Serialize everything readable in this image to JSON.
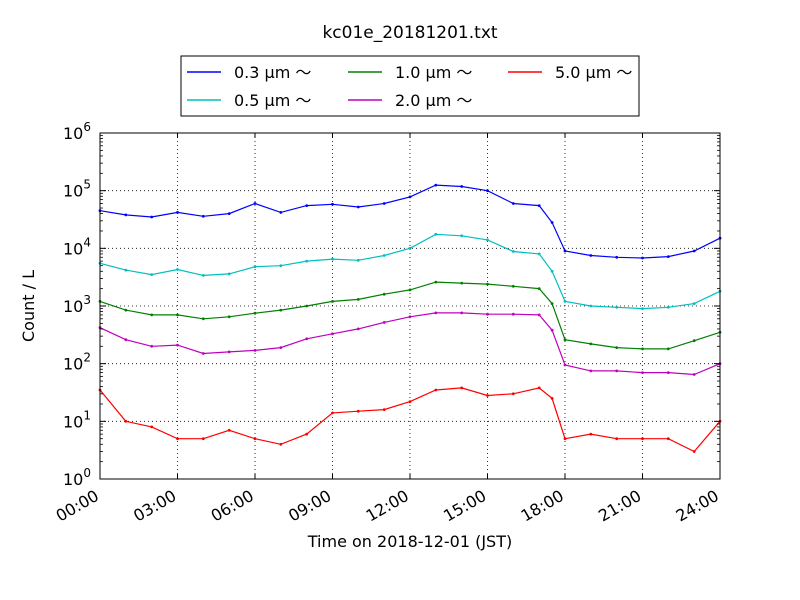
{
  "chart_data": {
    "type": "line",
    "title": "kc01e_20181201.txt",
    "xlabel": "Time on 2018-12-01 (JST)",
    "ylabel": "Count / L",
    "yscale": "log",
    "xlim": [
      "00:00",
      "24:00"
    ],
    "ylim": [
      1,
      1000000
    ],
    "grid": true,
    "legend_position": "top",
    "x_ticks": [
      "00:00",
      "03:00",
      "06:00",
      "09:00",
      "12:00",
      "15:00",
      "18:00",
      "21:00",
      "24:00"
    ],
    "y_ticks": [
      {
        "value": 1,
        "base": "10",
        "exp": "0"
      },
      {
        "value": 10,
        "base": "10",
        "exp": "1"
      },
      {
        "value": 100,
        "base": "10",
        "exp": "2"
      },
      {
        "value": 1000,
        "base": "10",
        "exp": "3"
      },
      {
        "value": 10000,
        "base": "10",
        "exp": "4"
      },
      {
        "value": 100000,
        "base": "10",
        "exp": "5"
      },
      {
        "value": 1000000,
        "base": "10",
        "exp": "6"
      }
    ],
    "x": [
      "00:00",
      "01:00",
      "02:00",
      "03:00",
      "04:00",
      "05:00",
      "06:00",
      "07:00",
      "08:00",
      "09:00",
      "10:00",
      "11:00",
      "12:00",
      "13:00",
      "14:00",
      "15:00",
      "16:00",
      "17:00",
      "17:30",
      "18:00",
      "19:00",
      "20:00",
      "21:00",
      "22:00",
      "23:00",
      "24:00"
    ],
    "series": [
      {
        "name": "0.3 μm ～",
        "color": "#0000ff",
        "values": [
          45000,
          38000,
          35000,
          42000,
          36000,
          40000,
          60000,
          42000,
          55000,
          58000,
          52000,
          60000,
          78000,
          125000,
          118000,
          100000,
          60000,
          55000,
          28000,
          9000,
          7500,
          7000,
          6800,
          7200,
          9000,
          15000
        ]
      },
      {
        "name": "0.5 μm ～",
        "color": "#00bfbf",
        "values": [
          5500,
          4200,
          3500,
          4300,
          3400,
          3600,
          4800,
          5000,
          6000,
          6500,
          6200,
          7500,
          10000,
          17500,
          16500,
          14000,
          8800,
          8000,
          4000,
          1200,
          1000,
          950,
          900,
          950,
          1100,
          1800
        ]
      },
      {
        "name": "1.0 μm ～",
        "color": "#008000",
        "values": [
          1200,
          850,
          700,
          700,
          600,
          650,
          750,
          850,
          1000,
          1200,
          1300,
          1600,
          1900,
          2600,
          2500,
          2400,
          2200,
          2000,
          1100,
          260,
          220,
          190,
          180,
          180,
          250,
          350
        ]
      },
      {
        "name": "2.0 μm ～",
        "color": "#bf00bf",
        "values": [
          420,
          260,
          200,
          210,
          150,
          160,
          170,
          190,
          270,
          330,
          400,
          520,
          650,
          760,
          760,
          720,
          720,
          700,
          380,
          95,
          75,
          75,
          70,
          70,
          65,
          100
        ]
      },
      {
        "name": "5.0 μm ～",
        "color": "#ff0000",
        "values": [
          35,
          10,
          8,
          5,
          5,
          7,
          5,
          4,
          6,
          14,
          15,
          16,
          22,
          35,
          38,
          28,
          30,
          38,
          25,
          5,
          6,
          5,
          5,
          5,
          3,
          10
        ]
      }
    ]
  }
}
